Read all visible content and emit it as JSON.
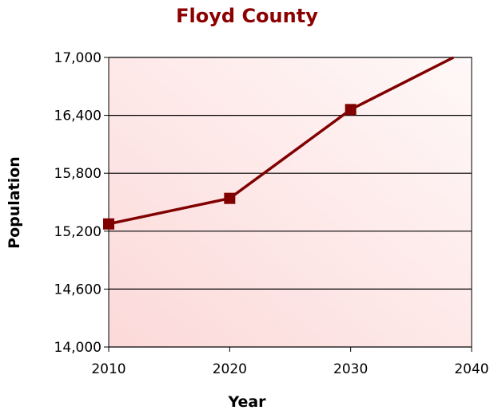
{
  "chart_data": {
    "type": "line",
    "title": "Floyd County",
    "xlabel": "Year",
    "ylabel": "Population",
    "xlim": [
      2010,
      2040
    ],
    "ylim": [
      14000,
      17000
    ],
    "x_ticks": [
      2010,
      2020,
      2030,
      2040
    ],
    "x_tick_labels": [
      "2010",
      "2020",
      "2030",
      "2040"
    ],
    "y_ticks": [
      14000,
      14600,
      15200,
      15800,
      16400,
      17000
    ],
    "y_tick_labels": [
      "14,000",
      "14,600",
      "15,200",
      "15,800",
      "16,400",
      "17,000"
    ],
    "grid": {
      "horizontal": true,
      "vertical": false
    },
    "series": [
      {
        "x": [
          2010,
          2020,
          2030,
          2038.5
        ],
        "y": [
          15275,
          15540,
          16460,
          17000
        ],
        "markers": [
          true,
          true,
          true,
          false
        ]
      }
    ],
    "colors": {
      "title": "#8b0000",
      "line": "#800000",
      "marker": "#800000",
      "plot_bg_light": "#fff8f8",
      "plot_bg_dark": "#fcd9d9",
      "grid": "#000000"
    }
  }
}
